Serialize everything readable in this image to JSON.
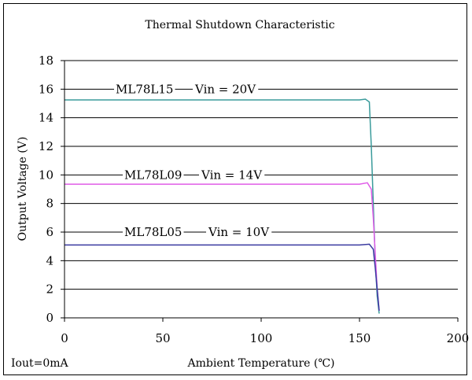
{
  "chart_data": {
    "type": "line",
    "title": "Thermal Shutdown Characteristic",
    "xlabel": "Ambient Temperature (℃)",
    "ylabel": "Output Voltage (V)",
    "xlim": [
      0,
      200
    ],
    "ylim": [
      0,
      18
    ],
    "xticks": [
      0,
      50,
      100,
      150,
      200
    ],
    "yticks": [
      0,
      2,
      4,
      6,
      8,
      10,
      12,
      14,
      16,
      18
    ],
    "grid": "horizontal",
    "footnote": "Iout=0mA",
    "series": [
      {
        "name": "ML78L15",
        "condition": "Vin = 20V",
        "color": "#3a9b9b",
        "points": [
          [
            0,
            15.25
          ],
          [
            100,
            15.25
          ],
          [
            150,
            15.25
          ],
          [
            153,
            15.3
          ],
          [
            155,
            15.1
          ],
          [
            156,
            12.0
          ],
          [
            157,
            8.0
          ],
          [
            158,
            4.0
          ],
          [
            159,
            1.5
          ],
          [
            160,
            0.3
          ]
        ]
      },
      {
        "name": "ML78L09",
        "condition": "Vin = 14V",
        "color": "#e05ce8",
        "points": [
          [
            0,
            9.35
          ],
          [
            100,
            9.35
          ],
          [
            150,
            9.35
          ],
          [
            154,
            9.45
          ],
          [
            156,
            9.0
          ],
          [
            157,
            7.0
          ],
          [
            158,
            4.5
          ],
          [
            159,
            2.0
          ],
          [
            160,
            0.5
          ]
        ]
      },
      {
        "name": "ML78L05",
        "condition": "Vin = 10V",
        "color": "#3a3aa0",
        "points": [
          [
            0,
            5.1
          ],
          [
            100,
            5.1
          ],
          [
            150,
            5.1
          ],
          [
            155,
            5.15
          ],
          [
            157,
            4.8
          ],
          [
            158,
            3.5
          ],
          [
            159,
            2.0
          ],
          [
            160,
            0.5
          ]
        ]
      }
    ]
  }
}
